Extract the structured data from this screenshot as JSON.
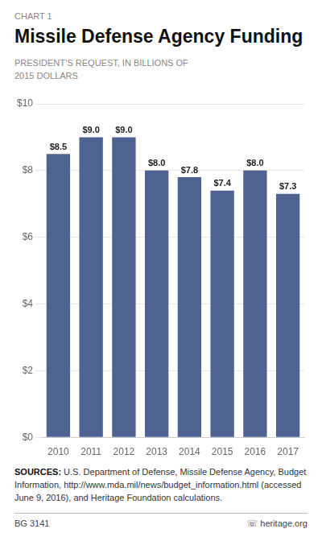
{
  "chart_data": {
    "type": "bar",
    "title": "Missile Defense Agency Funding",
    "subtitle": "PRESIDENT’S REQUEST, IN BILLIONS OF 2015 DOLLARS",
    "annotations": [
      "CHART 1",
      "SOURCES: U.S. Department of Defense, Missile Defense Agency, Budget Information, http://www.mda.mil/news/budget_information.html (accessed June 9, 2016), and Heritage Foundation calculations.",
      "BG 3141",
      "☏ heritage.org"
    ],
    "categories": [
      "2010",
      "2011",
      "2012",
      "2013",
      "2014",
      "2015",
      "2016",
      "2017"
    ],
    "values": [
      8.5,
      9.0,
      9.0,
      8.0,
      7.8,
      7.4,
      8.0,
      7.3
    ],
    "value_labels": [
      "$8.5",
      "$9.0",
      "$9.0",
      "$8.0",
      "$7.8",
      "$7.4",
      "$8.0",
      "$7.3"
    ],
    "data_labels": true,
    "color": "#4f6393",
    "ylim": [
      0,
      10
    ],
    "yticks": [
      {
        "value": 0,
        "label": "$0"
      },
      {
        "value": 2,
        "label": "$2"
      },
      {
        "value": 4,
        "label": "$4"
      },
      {
        "value": 6,
        "label": "$6"
      },
      {
        "value": 8,
        "label": "$8"
      },
      {
        "value": 10,
        "label": "$10"
      }
    ],
    "grid": true
  }
}
